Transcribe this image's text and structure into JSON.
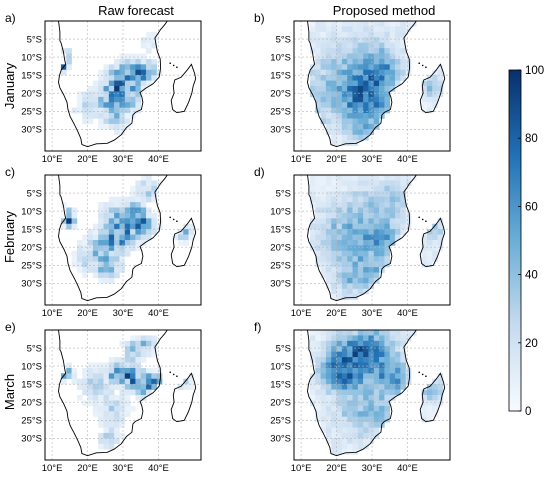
{
  "chart_data": {
    "type": "heatmap",
    "columns": [
      {
        "title": "Raw forecast"
      },
      {
        "title": "Proposed method"
      }
    ],
    "rows": [
      {
        "label": "January"
      },
      {
        "label": "February"
      },
      {
        "label": "March"
      }
    ],
    "panels": [
      {
        "id": "a",
        "label": "a)",
        "month": "January",
        "method": "Raw forecast",
        "hotspots": [
          [
            29,
            -17,
            70,
            3
          ],
          [
            33,
            -15,
            60,
            2.5
          ],
          [
            27,
            -22,
            55,
            2.5
          ],
          [
            33,
            -22,
            45,
            2
          ],
          [
            28,
            -27,
            45,
            2
          ],
          [
            13,
            -12,
            85,
            1.2
          ],
          [
            14,
            -9,
            60,
            1
          ],
          [
            37,
            -14,
            40,
            2
          ],
          [
            20,
            -24,
            25,
            3
          ],
          [
            38,
            -6,
            20,
            2
          ]
        ]
      },
      {
        "id": "b",
        "label": "b)",
        "month": "January",
        "method": "Proposed method",
        "hotspots": [
          [
            29,
            -17,
            40,
            5
          ],
          [
            26,
            -22,
            30,
            4
          ],
          [
            32,
            -24,
            28,
            3
          ],
          [
            34,
            -14,
            25,
            3
          ],
          [
            27,
            -30,
            30,
            3
          ],
          [
            19,
            -14,
            18,
            6
          ],
          [
            17,
            -24,
            15,
            5
          ],
          [
            30,
            -8,
            15,
            5
          ],
          [
            47,
            -18,
            30,
            2
          ]
        ]
      },
      {
        "id": "c",
        "label": "c)",
        "month": "February",
        "method": "Raw forecast",
        "hotspots": [
          [
            30,
            -16,
            70,
            3
          ],
          [
            25,
            -20,
            50,
            3
          ],
          [
            26,
            -26,
            55,
            2
          ],
          [
            36,
            -14,
            60,
            2
          ],
          [
            14,
            -11,
            90,
            1.2
          ],
          [
            15,
            -13,
            70,
            1
          ],
          [
            34,
            -10,
            45,
            2
          ],
          [
            37,
            -4,
            40,
            2
          ],
          [
            20,
            -23,
            25,
            3
          ],
          [
            28,
            -11,
            30,
            3
          ],
          [
            47,
            -16,
            50,
            1.5
          ]
        ]
      },
      {
        "id": "d",
        "label": "d)",
        "month": "February",
        "method": "Proposed method",
        "hotspots": [
          [
            33,
            -18,
            40,
            3
          ],
          [
            25,
            -20,
            25,
            5
          ],
          [
            20,
            -15,
            18,
            5
          ],
          [
            30,
            -27,
            30,
            3
          ],
          [
            30,
            -10,
            22,
            5
          ],
          [
            37,
            -7,
            20,
            3
          ],
          [
            24,
            -29,
            25,
            3
          ],
          [
            47,
            -15,
            30,
            2
          ]
        ]
      },
      {
        "id": "e",
        "label": "e)",
        "month": "March",
        "method": "Raw forecast",
        "hotspots": [
          [
            36,
            -15,
            85,
            2
          ],
          [
            32,
            -13,
            70,
            2
          ],
          [
            28,
            -12,
            50,
            2
          ],
          [
            14,
            -12,
            90,
            1.2
          ],
          [
            33,
            -6,
            50,
            2
          ],
          [
            37,
            -4,
            45,
            1.5
          ],
          [
            22,
            -15,
            30,
            3
          ],
          [
            27,
            -22,
            30,
            3
          ],
          [
            26,
            -30,
            30,
            2
          ],
          [
            47,
            -14,
            50,
            1.5
          ],
          [
            40,
            -14,
            45,
            1.5
          ]
        ]
      },
      {
        "id": "f",
        "label": "f)",
        "month": "March",
        "method": "Proposed method",
        "hotspots": [
          [
            24,
            -6,
            40,
            4
          ],
          [
            31,
            -5,
            35,
            4
          ],
          [
            22,
            -13,
            40,
            3
          ],
          [
            18,
            -11,
            35,
            3
          ],
          [
            36,
            -14,
            40,
            3
          ],
          [
            30,
            -10,
            25,
            5
          ],
          [
            26,
            -22,
            25,
            5
          ],
          [
            33,
            -24,
            25,
            3
          ],
          [
            47,
            -17,
            30,
            2
          ]
        ]
      }
    ],
    "xlim": [
      8,
      52
    ],
    "ylim": [
      -36,
      0
    ],
    "xticks": [
      10,
      20,
      30,
      40
    ],
    "xtick_labels": [
      "10°E",
      "20°E",
      "30°E",
      "40°E"
    ],
    "yticks": [
      -5,
      -10,
      -15,
      -20,
      -25,
      -30
    ],
    "ytick_labels": [
      "5°S",
      "10°S",
      "15°S",
      "20°S",
      "25°S",
      "30°S"
    ],
    "grid": true,
    "colorbar": {
      "min": 0,
      "max": 100,
      "ticks": [
        0,
        20,
        40,
        60,
        80,
        100
      ],
      "tick_labels": [
        "0",
        "20",
        "40",
        "60",
        "80",
        "100"
      ],
      "colors": [
        "#f7fbff",
        "#c6dbef",
        "#6baed6",
        "#2171b5",
        "#08306b"
      ]
    },
    "cell_size_deg": 1.5
  }
}
